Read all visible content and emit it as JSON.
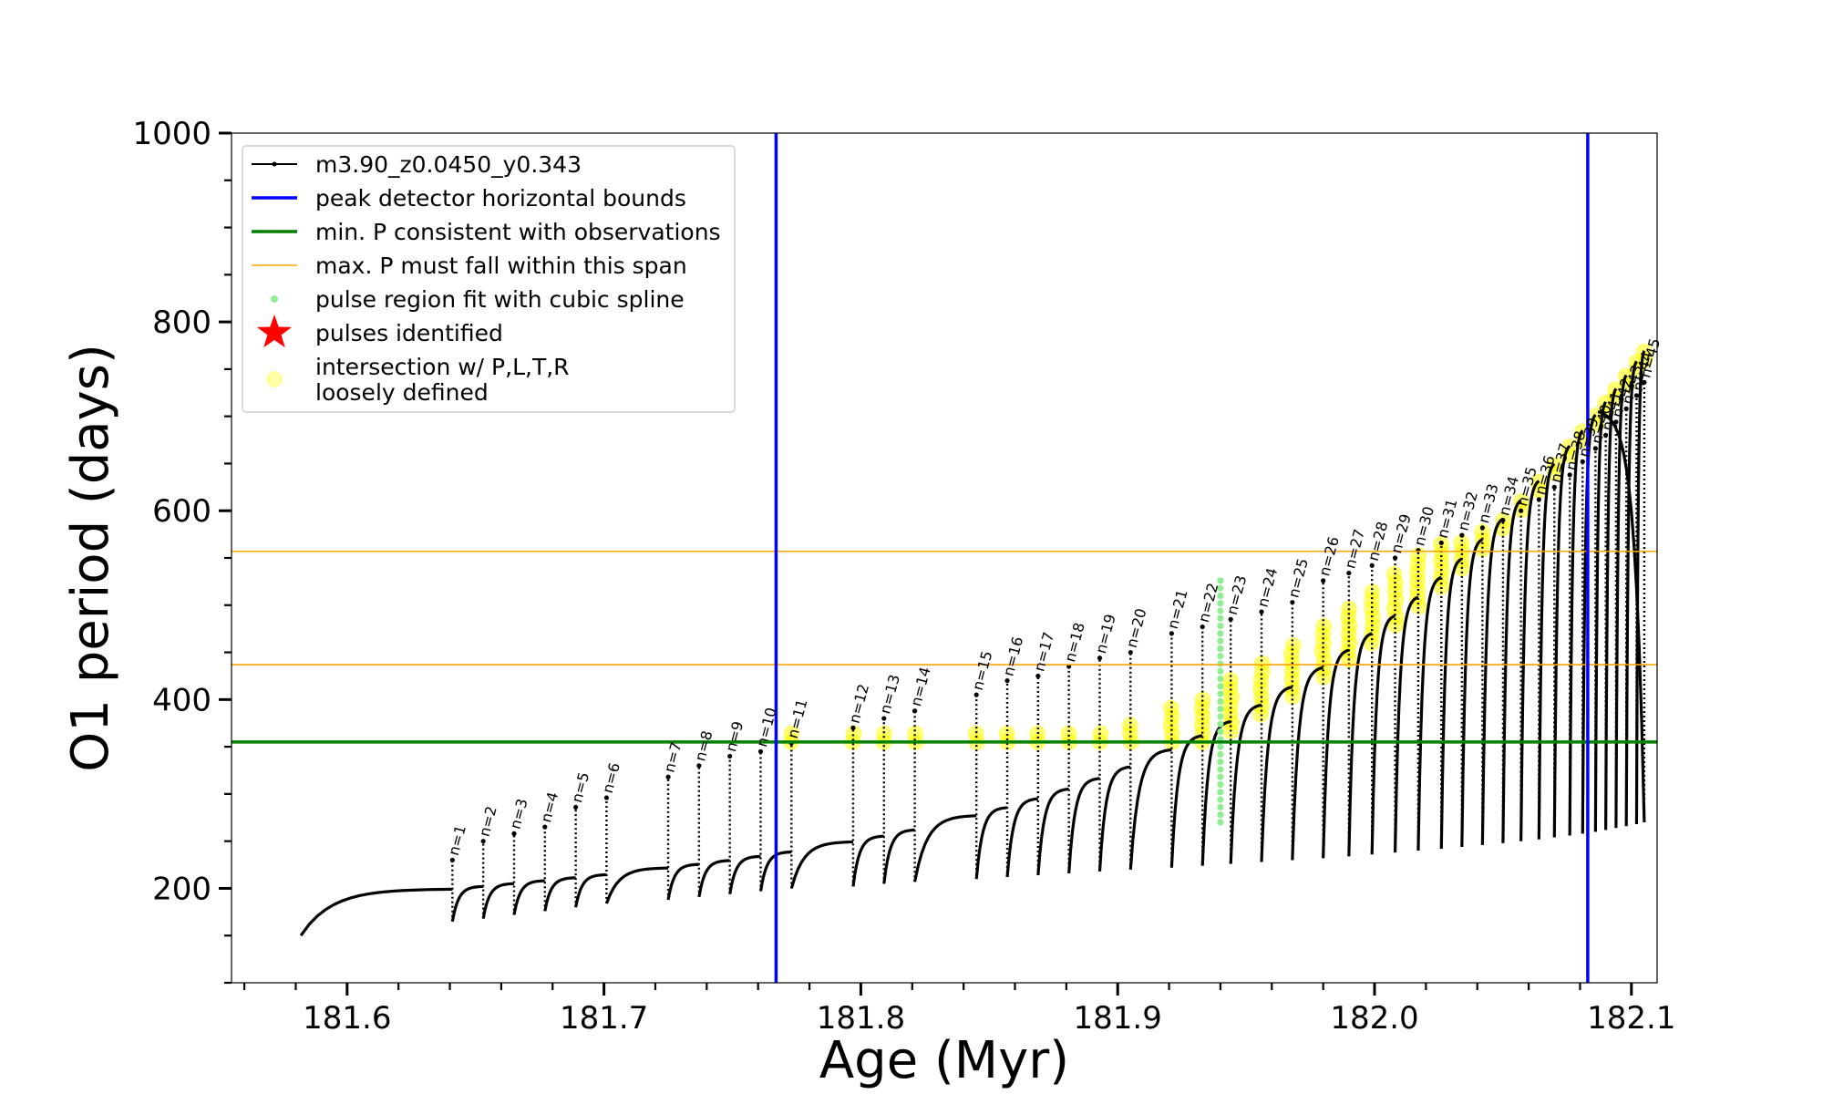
{
  "chart_data": {
    "type": "scatter",
    "xlabel": "Age (Myr)",
    "ylabel": "O1 period (days)",
    "xlim": [
      181.555,
      182.11
    ],
    "ylim": [
      100,
      1000
    ],
    "xticks": [
      181.6,
      181.7,
      181.8,
      181.9,
      182.0,
      182.1
    ],
    "xtick_labels": [
      "181.6",
      "181.7",
      "181.8",
      "181.9",
      "182.0",
      "182.1"
    ],
    "yticks": [
      200,
      400,
      600,
      800,
      1000
    ],
    "ytick_labels": [
      "200",
      "400",
      "600",
      "800",
      "1000"
    ],
    "grid": false,
    "legend_position": "upper-left",
    "series_name": "m3.90_z0.0450_y0.343",
    "track_start_age": 181.582,
    "track_end_age": 182.087,
    "num_pulses": 45,
    "peak_detector_bounds": [
      181.767,
      182.083
    ],
    "min_period_observed": 355,
    "max_period_span": [
      437,
      557
    ],
    "spline_fit_age": 181.94,
    "spline_fit_range": [
      270,
      530
    ],
    "pulses": [
      {
        "label": "n=1",
        "age": 181.641,
        "top": 230,
        "min": 165
      },
      {
        "label": "n=2",
        "age": 181.653,
        "top": 250,
        "min": 168
      },
      {
        "label": "n=3",
        "age": 181.665,
        "top": 258,
        "min": 172
      },
      {
        "label": "n=4",
        "age": 181.677,
        "top": 265,
        "min": 176
      },
      {
        "label": "n=5",
        "age": 181.689,
        "top": 286,
        "min": 180
      },
      {
        "label": "n=6",
        "age": 181.701,
        "top": 296,
        "min": 184
      },
      {
        "label": "n=7",
        "age": 181.725,
        "top": 318,
        "min": 188
      },
      {
        "label": "n=8",
        "age": 181.737,
        "top": 330,
        "min": 191
      },
      {
        "label": "n=9",
        "age": 181.749,
        "top": 340,
        "min": 194
      },
      {
        "label": "n=10",
        "age": 181.761,
        "top": 345,
        "min": 197
      },
      {
        "label": "n=11",
        "age": 181.773,
        "top": 354,
        "min": 200
      },
      {
        "label": "n=12",
        "age": 181.797,
        "top": 370,
        "min": 202
      },
      {
        "label": "n=13",
        "age": 181.809,
        "top": 380,
        "min": 205
      },
      {
        "label": "n=14",
        "age": 181.821,
        "top": 388,
        "min": 207
      },
      {
        "label": "n=15",
        "age": 181.845,
        "top": 405,
        "min": 210
      },
      {
        "label": "n=16",
        "age": 181.857,
        "top": 420,
        "min": 212
      },
      {
        "label": "n=17",
        "age": 181.869,
        "top": 425,
        "min": 214
      },
      {
        "label": "n=18",
        "age": 181.881,
        "top": 435,
        "min": 216
      },
      {
        "label": "n=19",
        "age": 181.893,
        "top": 444,
        "min": 218
      },
      {
        "label": "n=20",
        "age": 181.905,
        "top": 450,
        "min": 220
      },
      {
        "label": "n=21",
        "age": 181.921,
        "top": 470,
        "min": 222
      },
      {
        "label": "n=22",
        "age": 181.933,
        "top": 477,
        "min": 224
      },
      {
        "label": "n=23",
        "age": 181.944,
        "top": 485,
        "min": 226
      },
      {
        "label": "n=24",
        "age": 181.956,
        "top": 493,
        "min": 228
      },
      {
        "label": "n=25",
        "age": 181.968,
        "top": 503,
        "min": 230
      },
      {
        "label": "n=26",
        "age": 181.98,
        "top": 526,
        "min": 232
      },
      {
        "label": "n=27",
        "age": 181.99,
        "top": 534,
        "min": 234
      },
      {
        "label": "n=28",
        "age": 181.999,
        "top": 542,
        "min": 236
      },
      {
        "label": "n=29",
        "age": 182.008,
        "top": 550,
        "min": 238
      },
      {
        "label": "n=30",
        "age": 182.017,
        "top": 558,
        "min": 240
      },
      {
        "label": "n=31",
        "age": 182.026,
        "top": 566,
        "min": 242
      },
      {
        "label": "n=32",
        "age": 182.034,
        "top": 574,
        "min": 244
      },
      {
        "label": "n=33",
        "age": 182.042,
        "top": 582,
        "min": 246
      },
      {
        "label": "n=34",
        "age": 182.05,
        "top": 590,
        "min": 248
      },
      {
        "label": "n=35",
        "age": 182.057,
        "top": 600,
        "min": 250
      },
      {
        "label": "n=36",
        "age": 182.064,
        "top": 612,
        "min": 252
      },
      {
        "label": "n=37",
        "age": 182.07,
        "top": 625,
        "min": 254
      },
      {
        "label": "n=38",
        "age": 182.076,
        "top": 638,
        "min": 256
      },
      {
        "label": "n=39",
        "age": 182.081,
        "top": 652,
        "min": 258
      },
      {
        "label": "n=40",
        "age": 182.086,
        "top": 666,
        "min": 260
      },
      {
        "label": "n=41",
        "age": 182.09,
        "top": 680,
        "min": 262
      },
      {
        "label": "n=42",
        "age": 182.094,
        "top": 694,
        "min": 264
      },
      {
        "label": "n=43",
        "age": 182.098,
        "top": 708,
        "min": 266
      },
      {
        "label": "n=44",
        "age": 182.102,
        "top": 722,
        "min": 268
      },
      {
        "label": "n=45",
        "age": 182.105,
        "top": 736,
        "min": 270
      }
    ],
    "legend": [
      {
        "label": "m3.90_z0.0450_y0.343",
        "marker": "line-dot",
        "color": "#000000"
      },
      {
        "label": "peak detector horizontal bounds",
        "marker": "line",
        "color": "#0000ff"
      },
      {
        "label": "min. P consistent with observations",
        "marker": "line",
        "color": "#008000"
      },
      {
        "label": "max. P must fall within this span",
        "marker": "thin-line",
        "color": "#ffa500"
      },
      {
        "label": "pulse region fit with cubic spline",
        "marker": "dot",
        "color": "#90ee90"
      },
      {
        "label": "pulses identified",
        "marker": "star",
        "color": "#ff0000"
      },
      {
        "label": "intersection w/ P,L,T,R\nloosely defined",
        "marker": "circle",
        "color": "#ffff66"
      }
    ],
    "colors": {
      "track": "#000000",
      "peak_bounds": "#0000ff",
      "min_period": "#008000",
      "max_span": "#ffa500",
      "spline": "#90ee90",
      "pulses": "#ff0000",
      "intersection": "#ffff00"
    }
  }
}
